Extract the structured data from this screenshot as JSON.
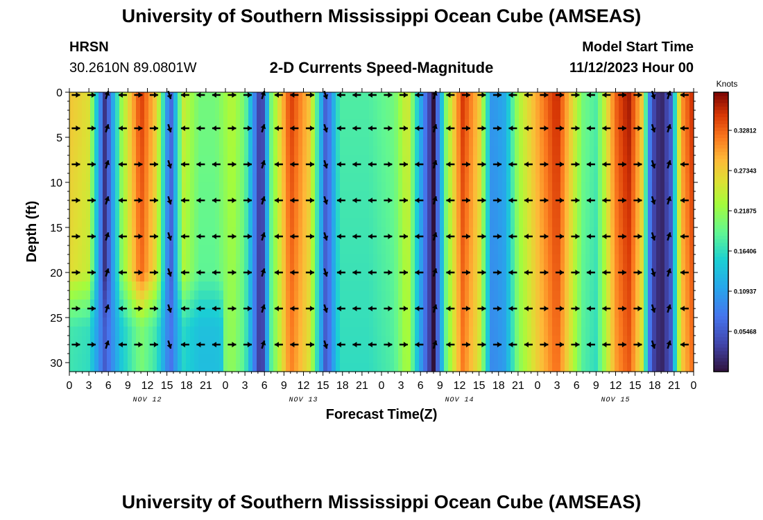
{
  "header": {
    "title": "University of Southern Mississippi Ocean Cube (AMSEAS)",
    "station_name": "HRSN",
    "station_coords": "30.2610N  89.0801W",
    "plot_title": "2-D Currents Speed-Magnitude",
    "model_start_label": "Model Start Time",
    "model_start_value": "11/12/2023 Hour 00"
  },
  "footer": {
    "title": "University of Southern Mississippi Ocean Cube (AMSEAS)"
  },
  "chart_data": {
    "type": "heatmap",
    "title": "2-D Currents Speed-Magnitude",
    "xlabel": "Forecast Time(Z)",
    "ylabel": "Depth (ft)",
    "x_hours_range": [
      0,
      96
    ],
    "ylim": [
      0,
      31
    ],
    "x_tick_hours": [
      0,
      3,
      6,
      9,
      12,
      15,
      18,
      21,
      24,
      27,
      30,
      33,
      36,
      39,
      42,
      45,
      48,
      51,
      54,
      57,
      60,
      63,
      66,
      69,
      72,
      75,
      78,
      81,
      84,
      87,
      90,
      93,
      96
    ],
    "x_tick_labels": [
      "0",
      "3",
      "6",
      "9",
      "12",
      "15",
      "18",
      "21",
      "0",
      "3",
      "6",
      "9",
      "12",
      "15",
      "18",
      "21",
      "0",
      "3",
      "6",
      "9",
      "12",
      "15",
      "18",
      "21",
      "0",
      "3",
      "6",
      "9",
      "12",
      "15",
      "18",
      "21",
      "0"
    ],
    "day_labels": [
      {
        "text": "NOV 12",
        "hour": 12
      },
      {
        "text": "NOV 13",
        "hour": 36
      },
      {
        "text": "NOV 14",
        "hour": 60
      },
      {
        "text": "NOV 15",
        "hour": 84
      }
    ],
    "y_ticks": [
      0,
      5,
      10,
      15,
      20,
      25,
      30
    ],
    "y_tick_labels": [
      "0",
      "5",
      "10",
      "15",
      "20",
      "25",
      "30"
    ],
    "colorbar": {
      "unit_label": "Knots",
      "range": [
        0,
        0.38
      ],
      "ticks": [
        0.05468,
        0.10937,
        0.16406,
        0.21875,
        0.27343,
        0.32812
      ],
      "tick_labels": [
        "0.05468",
        "0.10937",
        "0.16406",
        "0.21875",
        "0.27343",
        "0.32812"
      ]
    },
    "speed_profile_surface": [
      {
        "hour": 0,
        "speed": 0.28
      },
      {
        "hour": 3,
        "speed": 0.26
      },
      {
        "hour": 5.5,
        "speed": 0.02
      },
      {
        "hour": 8,
        "speed": 0.22
      },
      {
        "hour": 11,
        "speed": 0.35
      },
      {
        "hour": 13.5,
        "speed": 0.27
      },
      {
        "hour": 15.5,
        "speed": 0.05
      },
      {
        "hour": 17.5,
        "speed": 0.25
      },
      {
        "hour": 20,
        "speed": 0.2
      },
      {
        "hour": 22.5,
        "speed": 0.2
      },
      {
        "hour": 25,
        "speed": 0.24
      },
      {
        "hour": 27,
        "speed": 0.2
      },
      {
        "hour": 29.5,
        "speed": 0.01
      },
      {
        "hour": 31,
        "speed": 0.2
      },
      {
        "hour": 34,
        "speed": 0.35
      },
      {
        "hour": 37,
        "speed": 0.28
      },
      {
        "hour": 39.5,
        "speed": 0.05
      },
      {
        "hour": 41.5,
        "speed": 0.18
      },
      {
        "hour": 46,
        "speed": 0.18
      },
      {
        "hour": 50,
        "speed": 0.2
      },
      {
        "hour": 52,
        "speed": 0.26
      },
      {
        "hour": 54,
        "speed": 0.12
      },
      {
        "hour": 56,
        "speed": 0.0
      },
      {
        "hour": 58,
        "speed": 0.22
      },
      {
        "hour": 60.5,
        "speed": 0.35
      },
      {
        "hour": 63,
        "speed": 0.28
      },
      {
        "hour": 65,
        "speed": 0.1
      },
      {
        "hour": 67,
        "speed": 0.12
      },
      {
        "hour": 69,
        "speed": 0.23
      },
      {
        "hour": 72,
        "speed": 0.3
      },
      {
        "hour": 75,
        "speed": 0.36
      },
      {
        "hour": 77,
        "speed": 0.28
      },
      {
        "hour": 79,
        "speed": 0.2
      },
      {
        "hour": 81,
        "speed": 0.18
      },
      {
        "hour": 84,
        "speed": 0.33
      },
      {
        "hour": 86,
        "speed": 0.37
      },
      {
        "hour": 88,
        "speed": 0.28
      },
      {
        "hour": 89.5,
        "speed": 0.05
      },
      {
        "hour": 91,
        "speed": 0.01
      },
      {
        "hour": 92.5,
        "speed": 0.06
      },
      {
        "hour": 94,
        "speed": 0.3
      },
      {
        "hour": 96,
        "speed": 0.36
      }
    ],
    "arrow_depths_ft": [
      0,
      4,
      8,
      12,
      16,
      20,
      24,
      28
    ],
    "arrow_interval_hours": 2.4
  }
}
